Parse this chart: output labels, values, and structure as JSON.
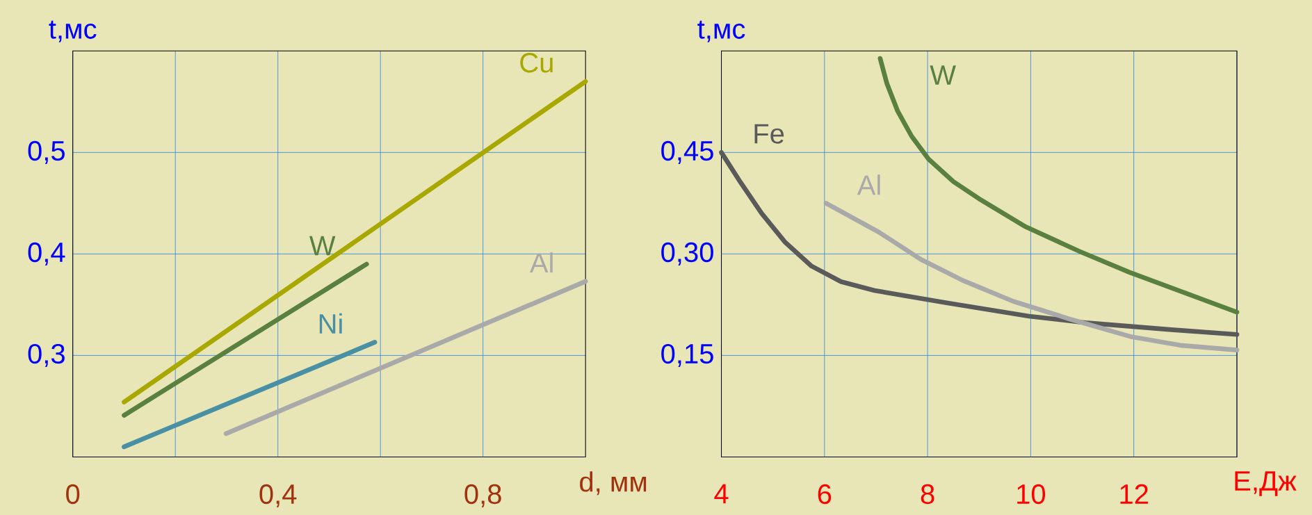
{
  "chart_data": [
    {
      "type": "line",
      "xlabel": "d,  мм",
      "ylabel": "t,мс",
      "xlim": [
        0,
        1.0
      ],
      "ylim": [
        0.2,
        0.6
      ],
      "xticks": [
        {
          "value": 0,
          "label": "0"
        },
        {
          "value": 0.2,
          "label": null
        },
        {
          "value": 0.4,
          "label": "0,4"
        },
        {
          "value": 0.6,
          "label": null
        },
        {
          "value": 0.8,
          "label": "0,8"
        }
      ],
      "yticks": [
        {
          "value": 0.3,
          "label": "0,3"
        },
        {
          "value": 0.4,
          "label": "0,4"
        },
        {
          "value": 0.5,
          "label": "0,5"
        }
      ],
      "grid": true,
      "series": [
        {
          "name": "Cu",
          "color": "#a8a800",
          "x": [
            0.1,
            1.0
          ],
          "values": [
            0.254,
            0.57
          ]
        },
        {
          "name": "W",
          "color": "#5a8040",
          "x": [
            0.1,
            0.573
          ],
          "values": [
            0.241,
            0.39
          ]
        },
        {
          "name": "Ni",
          "color": "#4a90a4",
          "x": [
            0.1,
            0.589
          ],
          "values": [
            0.21,
            0.313
          ]
        },
        {
          "name": "Al",
          "color": "#a9a9a9",
          "x": [
            0.299,
            1.0
          ],
          "values": [
            0.223,
            0.373
          ]
        }
      ]
    },
    {
      "type": "line",
      "xlabel": "Е,Дж",
      "ylabel": "t,мс",
      "xlim": [
        4,
        14
      ],
      "ylim": [
        0,
        0.6
      ],
      "xticks": [
        4,
        6,
        8,
        10,
        12,
        {
          "value": 14,
          "label": null
        }
      ],
      "yticks": [
        {
          "value": 0.15,
          "label": "0,15"
        },
        {
          "value": 0.3,
          "label": "0,30"
        },
        {
          "value": 0.45,
          "label": "0,45"
        }
      ],
      "grid": true,
      "series": [
        {
          "name": "W",
          "color": "#5a8040",
          "x": [
            7.08,
            7.21,
            7.42,
            7.69,
            8.02,
            8.5,
            8.99,
            9.88,
            10.94,
            11.91,
            14
          ],
          "values": [
            0.589,
            0.552,
            0.511,
            0.474,
            0.44,
            0.407,
            0.382,
            0.341,
            0.304,
            0.273,
            0.214
          ]
        },
        {
          "name": "Fe",
          "color": "#5a5a5a",
          "x": [
            4,
            4.37,
            4.78,
            5.24,
            5.75,
            6.32,
            6.97,
            8.35,
            9.97,
            11.11,
            12.73,
            14
          ],
          "values": [
            0.45,
            0.406,
            0.36,
            0.317,
            0.282,
            0.259,
            0.246,
            0.228,
            0.208,
            0.198,
            0.188,
            0.181
          ]
        },
        {
          "name": "Al",
          "color": "#a9a9a9",
          "x": [
            6.03,
            7.06,
            7.87,
            8.68,
            9.66,
            10.79,
            11.93,
            12.9,
            14
          ],
          "values": [
            0.375,
            0.332,
            0.292,
            0.261,
            0.23,
            0.203,
            0.178,
            0.165,
            0.158
          ]
        }
      ]
    }
  ]
}
